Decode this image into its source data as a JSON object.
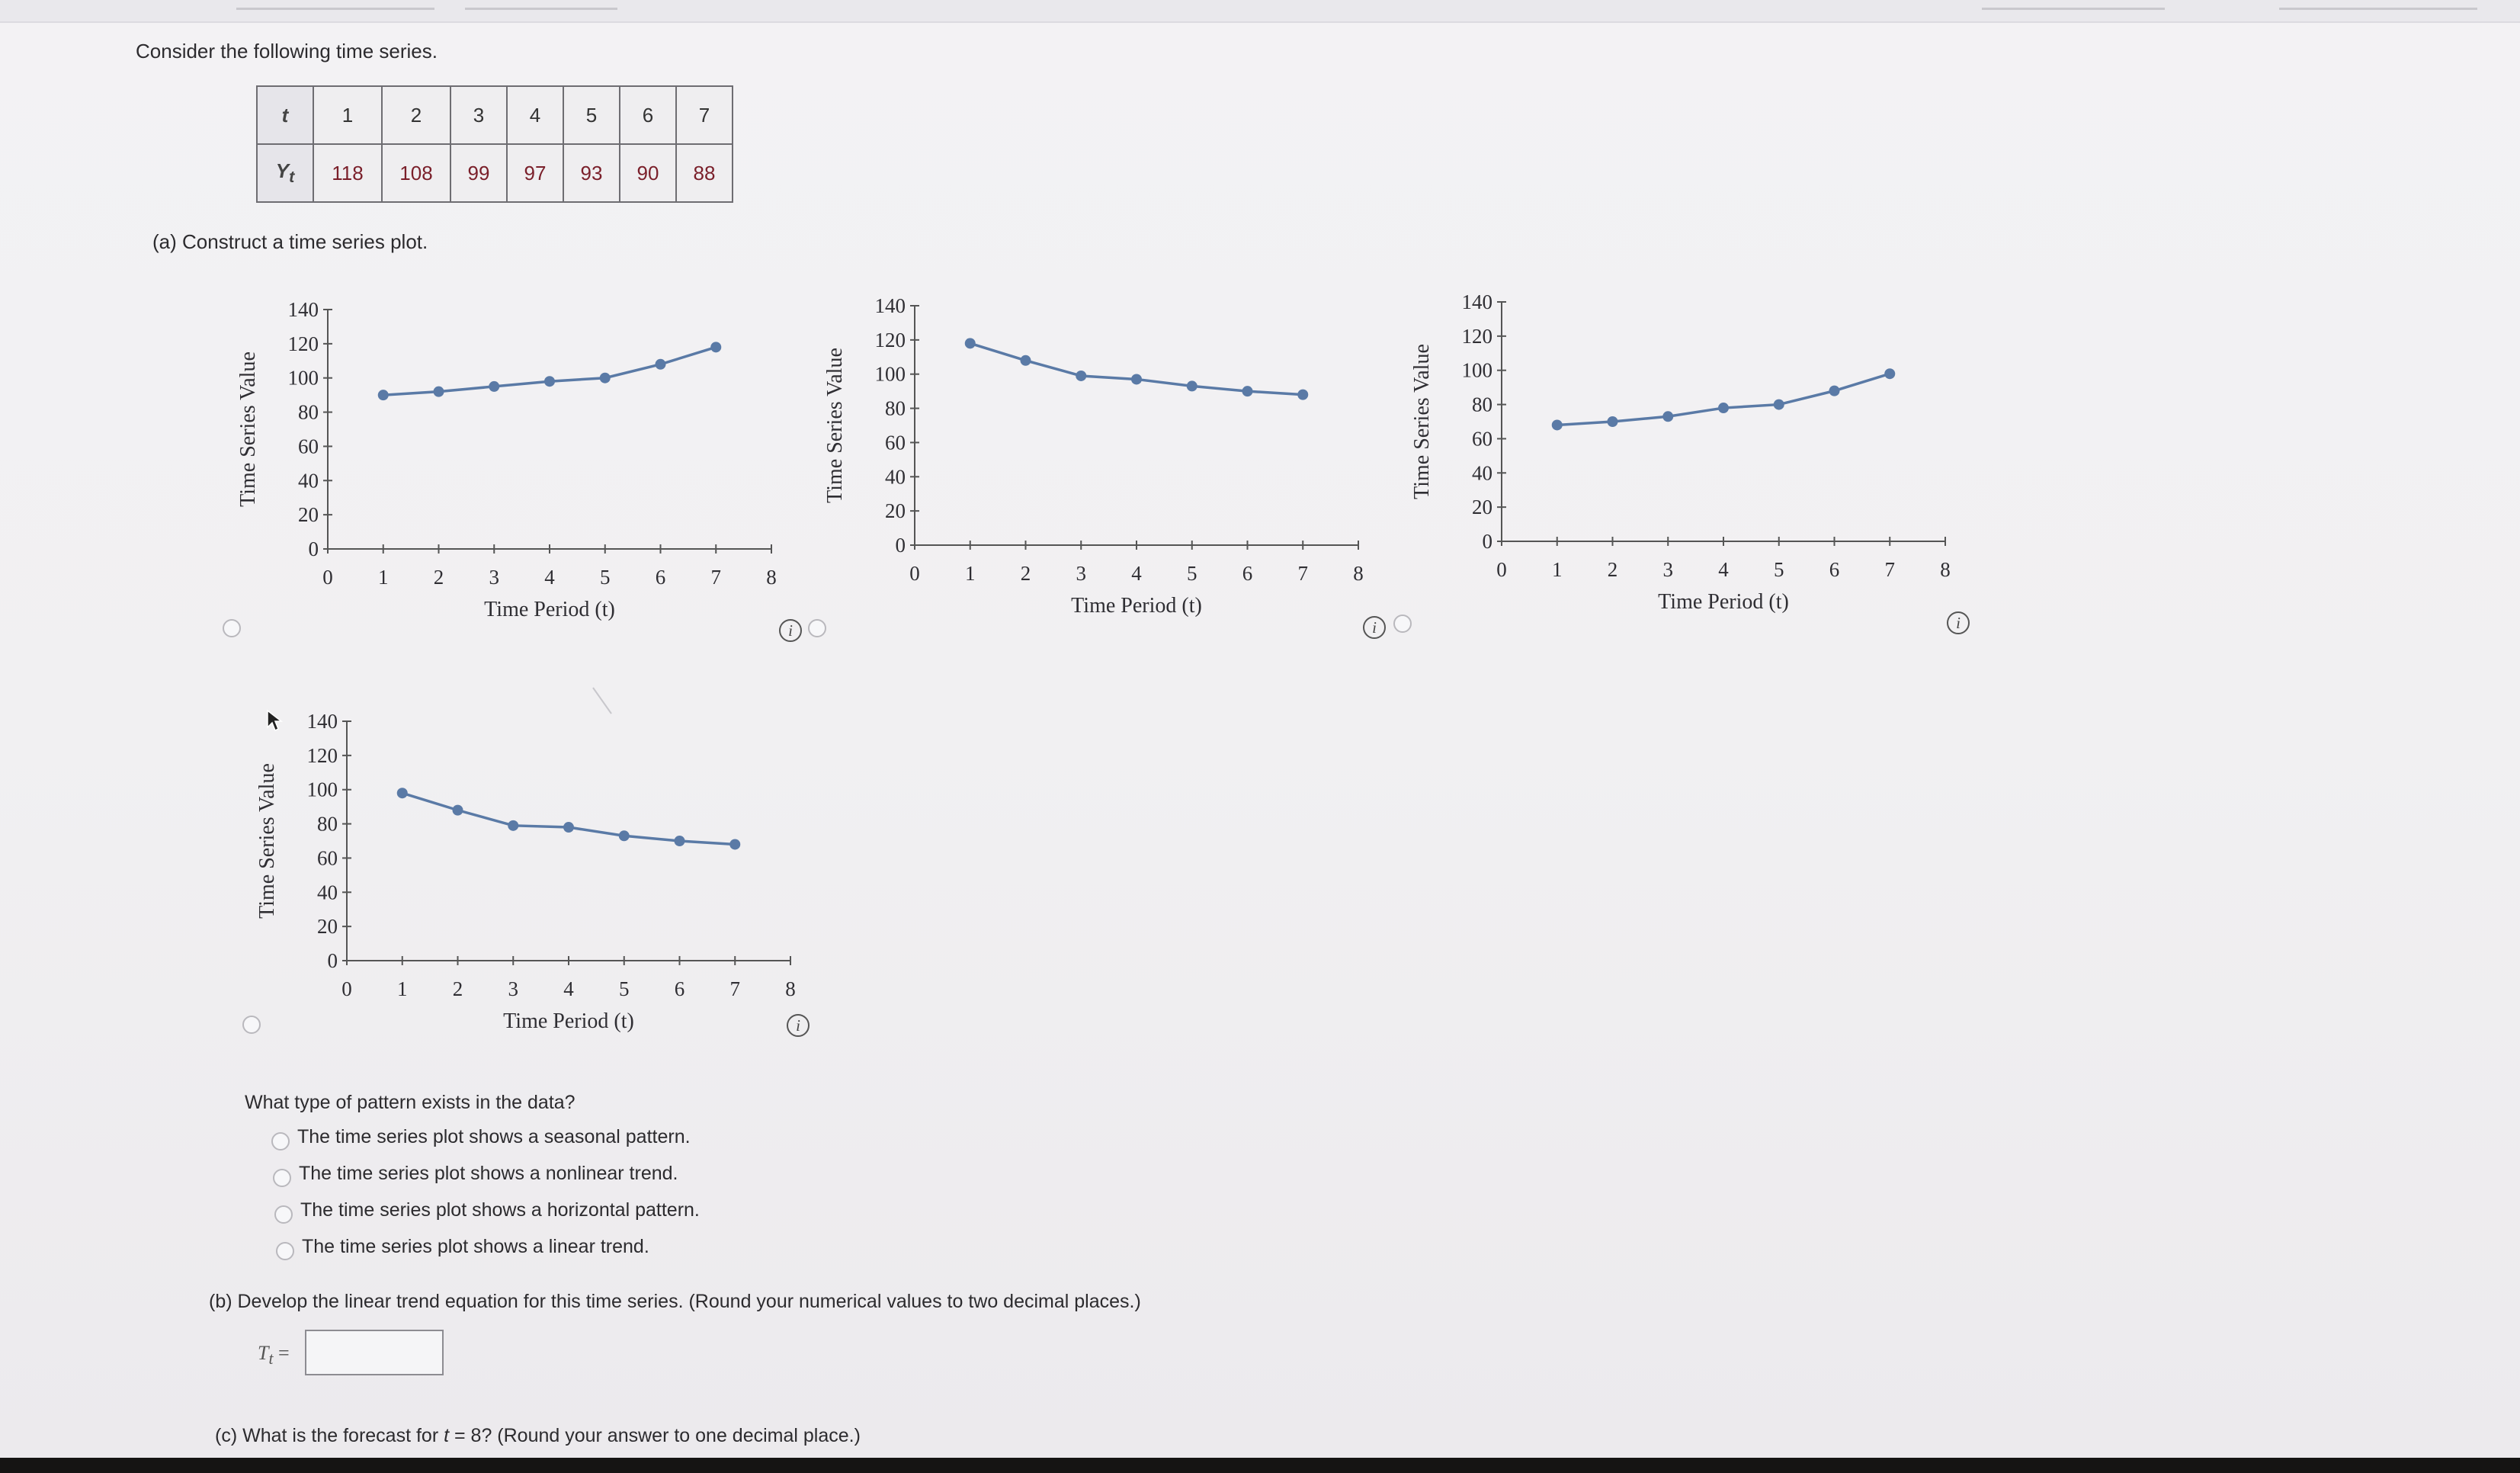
{
  "intro": "Consider the following time series.",
  "table": {
    "t_label": "t",
    "y_label": "Y",
    "y_sub": "t",
    "t": [
      1,
      2,
      3,
      4,
      5,
      6,
      7
    ],
    "y": [
      118,
      108,
      99,
      97,
      93,
      90,
      88
    ]
  },
  "part_a": {
    "prompt": "(a)   Construct a time series plot.",
    "info_glyph": "i",
    "icons": {
      "info": "info-circle-icon",
      "pointer": "mouse-cursor-icon"
    }
  },
  "chart_data": [
    {
      "type": "line",
      "x": [
        1,
        2,
        3,
        4,
        5,
        6,
        7
      ],
      "y": [
        90,
        92,
        95,
        98,
        100,
        108,
        118
      ],
      "xlabel": "Time Period (t)",
      "ylabel": "Time Series Value",
      "xlim": [
        0,
        8
      ],
      "ylim": [
        0,
        140
      ],
      "xticks": [
        0,
        1,
        2,
        3,
        4,
        5,
        6,
        7,
        8
      ],
      "yticks": [
        0,
        20,
        40,
        60,
        80,
        100,
        120,
        140
      ],
      "grid": false,
      "color": "#5a7aa6"
    },
    {
      "type": "line",
      "x": [
        1,
        2,
        3,
        4,
        5,
        6,
        7
      ],
      "y": [
        118,
        108,
        99,
        97,
        93,
        90,
        88
      ],
      "xlabel": "Time Period (t)",
      "ylabel": "Time Series Value",
      "xlim": [
        0,
        8
      ],
      "ylim": [
        0,
        140
      ],
      "xticks": [
        0,
        1,
        2,
        3,
        4,
        5,
        6,
        7,
        8
      ],
      "yticks": [
        0,
        20,
        40,
        60,
        80,
        100,
        120,
        140
      ],
      "grid": false,
      "color": "#5a7aa6"
    },
    {
      "type": "line",
      "x": [
        1,
        2,
        3,
        4,
        5,
        6,
        7
      ],
      "y": [
        68,
        70,
        73,
        78,
        80,
        88,
        98
      ],
      "xlabel": "Time Period (t)",
      "ylabel": "Time Series Value",
      "xlim": [
        0,
        8
      ],
      "ylim": [
        0,
        140
      ],
      "xticks": [
        0,
        1,
        2,
        3,
        4,
        5,
        6,
        7,
        8
      ],
      "yticks": [
        0,
        20,
        40,
        60,
        80,
        100,
        120,
        140
      ],
      "grid": false,
      "color": "#5a7aa6"
    },
    {
      "type": "line",
      "x": [
        1,
        2,
        3,
        4,
        5,
        6,
        7
      ],
      "y": [
        98,
        88,
        79,
        78,
        73,
        70,
        68
      ],
      "xlabel": "Time Period (t)",
      "ylabel": "Time Series Value",
      "xlim": [
        0,
        8
      ],
      "ylim": [
        0,
        140
      ],
      "xticks": [
        0,
        1,
        2,
        3,
        4,
        5,
        6,
        7,
        8
      ],
      "yticks": [
        0,
        20,
        40,
        60,
        80,
        100,
        120,
        140
      ],
      "grid": false,
      "color": "#5a7aa6"
    }
  ],
  "pattern": {
    "question": "What type of pattern exists in the data?",
    "options": [
      "The time series plot shows a seasonal pattern.",
      "The time series plot shows a nonlinear trend.",
      "The time series plot shows a horizontal pattern.",
      "The time series plot shows a linear trend."
    ]
  },
  "part_b": {
    "prompt": "(b)   Develop the linear trend equation for this time series. (Round your numerical values to two decimal places.)",
    "label": "T",
    "label_sub": "t",
    "equals": " =",
    "value": ""
  },
  "part_c": {
    "prompt_pre": "(c)   What is the forecast for ",
    "var": "t",
    "prompt_post": " = 8? (Round your answer to one decimal place.)"
  }
}
